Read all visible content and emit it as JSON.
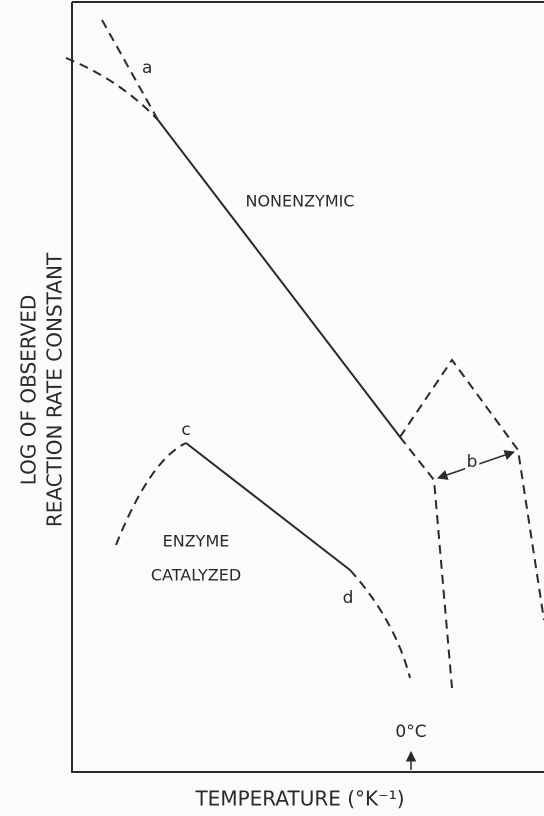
{
  "labels": {
    "a": "a",
    "nonenzymic": "NONENZYMIC",
    "b": "b",
    "c": "c",
    "enzyme": "ENZYME",
    "catalyzed": "CATALYZED",
    "d": "d",
    "zero": "0°C"
  },
  "y_axis": {
    "line1": "LOG OF OBSERVED",
    "line2": "REACTION RATE CONSTANT"
  },
  "x_axis": {
    "label": "TEMPERATURE (°K⁻¹)"
  }
}
